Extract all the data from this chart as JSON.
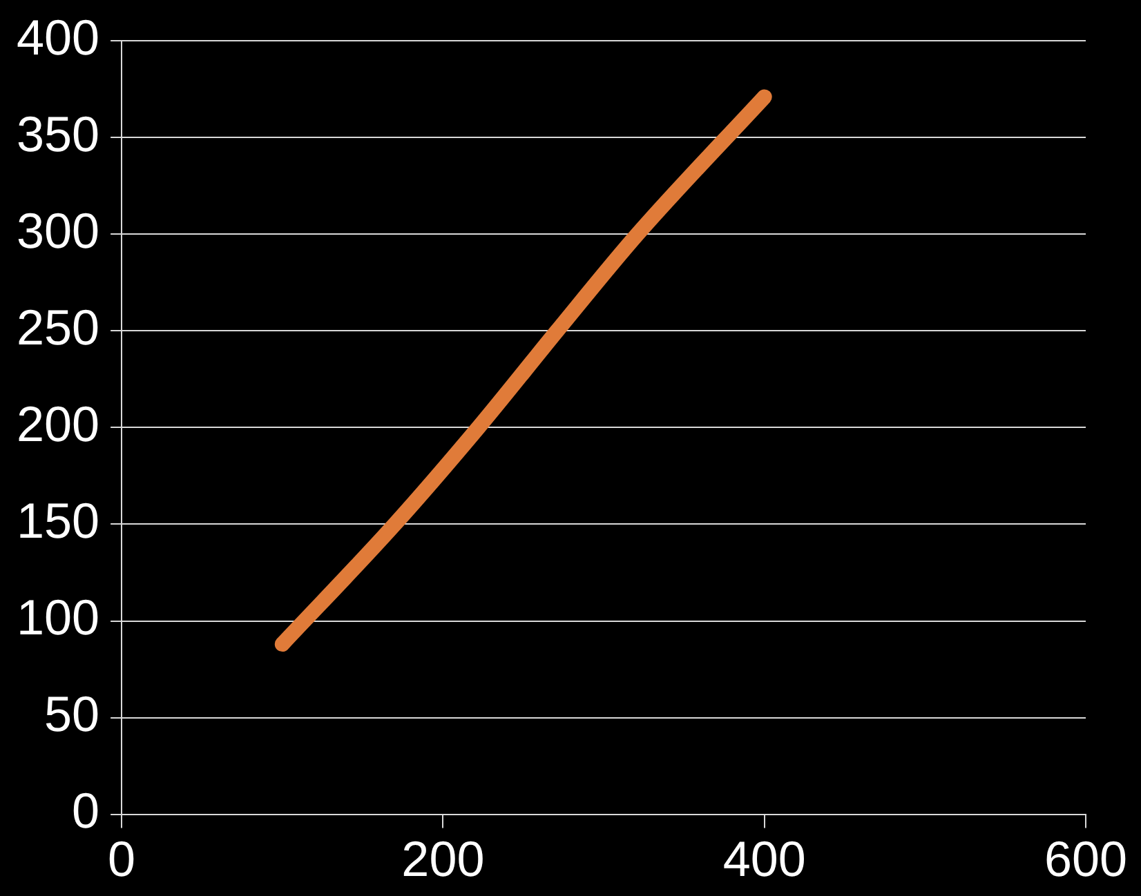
{
  "chart_data": {
    "type": "line",
    "x": [
      100,
      170,
      222,
      271,
      321,
      400
    ],
    "series": [
      {
        "color": "#e07b39",
        "values": [
          88,
          150,
          200,
          250,
          300,
          371
        ]
      }
    ],
    "xlim": [
      0,
      600
    ],
    "xticks": [
      0,
      200,
      400,
      600
    ],
    "ylim": [
      0,
      400
    ],
    "yticks": [
      0,
      50,
      100,
      150,
      200,
      250,
      300,
      350,
      400
    ],
    "grid": "y",
    "legend": false,
    "marker": "none",
    "line_style": "solid"
  }
}
